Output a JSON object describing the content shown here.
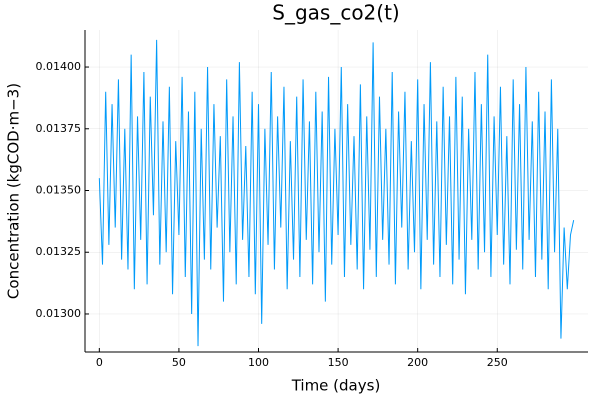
{
  "chart_data": {
    "type": "line",
    "title": "S_gas_co2(t)",
    "xlabel": "Time (days)",
    "ylabel": "Concentration (kgCOD·m−3)",
    "color": "#009af9",
    "grid": true,
    "xlim": [
      -9,
      307
    ],
    "xticks": [
      0,
      50,
      100,
      150,
      200,
      250
    ],
    "ylim": [
      0.012846,
      0.01415
    ],
    "yticks": [
      {
        "value": 0.013,
        "label": "0.01300"
      },
      {
        "value": 0.01325,
        "label": "0.01325"
      },
      {
        "value": 0.0135,
        "label": "0.01350"
      },
      {
        "value": 0.01375,
        "label": "0.01375"
      },
      {
        "value": 0.014,
        "label": "0.01400"
      }
    ],
    "x": [
      0,
      2,
      4,
      6,
      8,
      10,
      12,
      14,
      16,
      18,
      20,
      22,
      24,
      26,
      28,
      30,
      32,
      34,
      36,
      38,
      40,
      42,
      44,
      46,
      48,
      50,
      52,
      54,
      56,
      58,
      60,
      62,
      64,
      66,
      68,
      70,
      72,
      74,
      76,
      78,
      80,
      82,
      84,
      86,
      88,
      90,
      92,
      94,
      96,
      98,
      100,
      102,
      104,
      106,
      108,
      110,
      112,
      114,
      116,
      118,
      120,
      122,
      124,
      126,
      128,
      130,
      132,
      134,
      136,
      138,
      140,
      142,
      144,
      146,
      148,
      150,
      152,
      154,
      156,
      158,
      160,
      162,
      164,
      166,
      168,
      170,
      172,
      174,
      176,
      178,
      180,
      182,
      184,
      186,
      188,
      190,
      192,
      194,
      196,
      198,
      200,
      202,
      204,
      206,
      208,
      210,
      212,
      214,
      216,
      218,
      220,
      222,
      224,
      226,
      228,
      230,
      232,
      234,
      236,
      238,
      240,
      242,
      244,
      246,
      248,
      250,
      252,
      254,
      256,
      258,
      260,
      262,
      264,
      266,
      268,
      270,
      272,
      274,
      276,
      278,
      280,
      282,
      284,
      286,
      288,
      290,
      292,
      294,
      296,
      298
    ],
    "values": [
      0.01355,
      0.0132,
      0.0139,
      0.01328,
      0.01385,
      0.01335,
      0.01395,
      0.01322,
      0.01375,
      0.01318,
      0.01405,
      0.0131,
      0.0138,
      0.0133,
      0.01398,
      0.01312,
      0.01388,
      0.0134,
      0.01411,
      0.0132,
      0.01378,
      0.01325,
      0.01392,
      0.01308,
      0.0137,
      0.01332,
      0.01396,
      0.01315,
      0.01382,
      0.013,
      0.0139,
      0.01287,
      0.01375,
      0.01322,
      0.014,
      0.01318,
      0.01385,
      0.01335,
      0.01372,
      0.01305,
      0.01395,
      0.01325,
      0.0138,
      0.01312,
      0.01402,
      0.0133,
      0.01368,
      0.01315,
      0.0139,
      0.01308,
      0.01385,
      0.01296,
      0.01375,
      0.01328,
      0.01398,
      0.01318,
      0.0138,
      0.01335,
      0.01392,
      0.0131,
      0.0137,
      0.01322,
      0.01388,
      0.01315,
      0.01395,
      0.0133,
      0.01378,
      0.01312,
      0.0139,
      0.01325,
      0.01382,
      0.01305,
      0.01396,
      0.0132,
      0.01375,
      0.01332,
      0.014,
      0.01315,
      0.01385,
      0.01328,
      0.01372,
      0.01318,
      0.01393,
      0.0131,
      0.0138,
      0.01326,
      0.0141,
      0.01315,
      0.01388,
      0.0133,
      0.01375,
      0.0132,
      0.01398,
      0.01312,
      0.01382,
      0.01335,
      0.0139,
      0.01318,
      0.0137,
      0.01325,
      0.01395,
      0.0131,
      0.01385,
      0.0133,
      0.01402,
      0.0132,
      0.01378,
      0.01315,
      0.01392,
      0.01328,
      0.0138,
      0.01312,
      0.01396,
      0.01322,
      0.01388,
      0.01308,
      0.01375,
      0.0133,
      0.01398,
      0.01318,
      0.01385,
      0.01325,
      0.01405,
      0.01315,
      0.0138,
      0.01332,
      0.01392,
      0.0132,
      0.01372,
      0.01312,
      0.01395,
      0.01326,
      0.01385,
      0.01318,
      0.014,
      0.0133,
      0.01378,
      0.01315,
      0.0139,
      0.01322,
      0.01382,
      0.0131,
      0.01395,
      0.01325,
      0.01375,
      0.0129,
      0.01335,
      0.0131,
      0.01332,
      0.01338
    ]
  }
}
